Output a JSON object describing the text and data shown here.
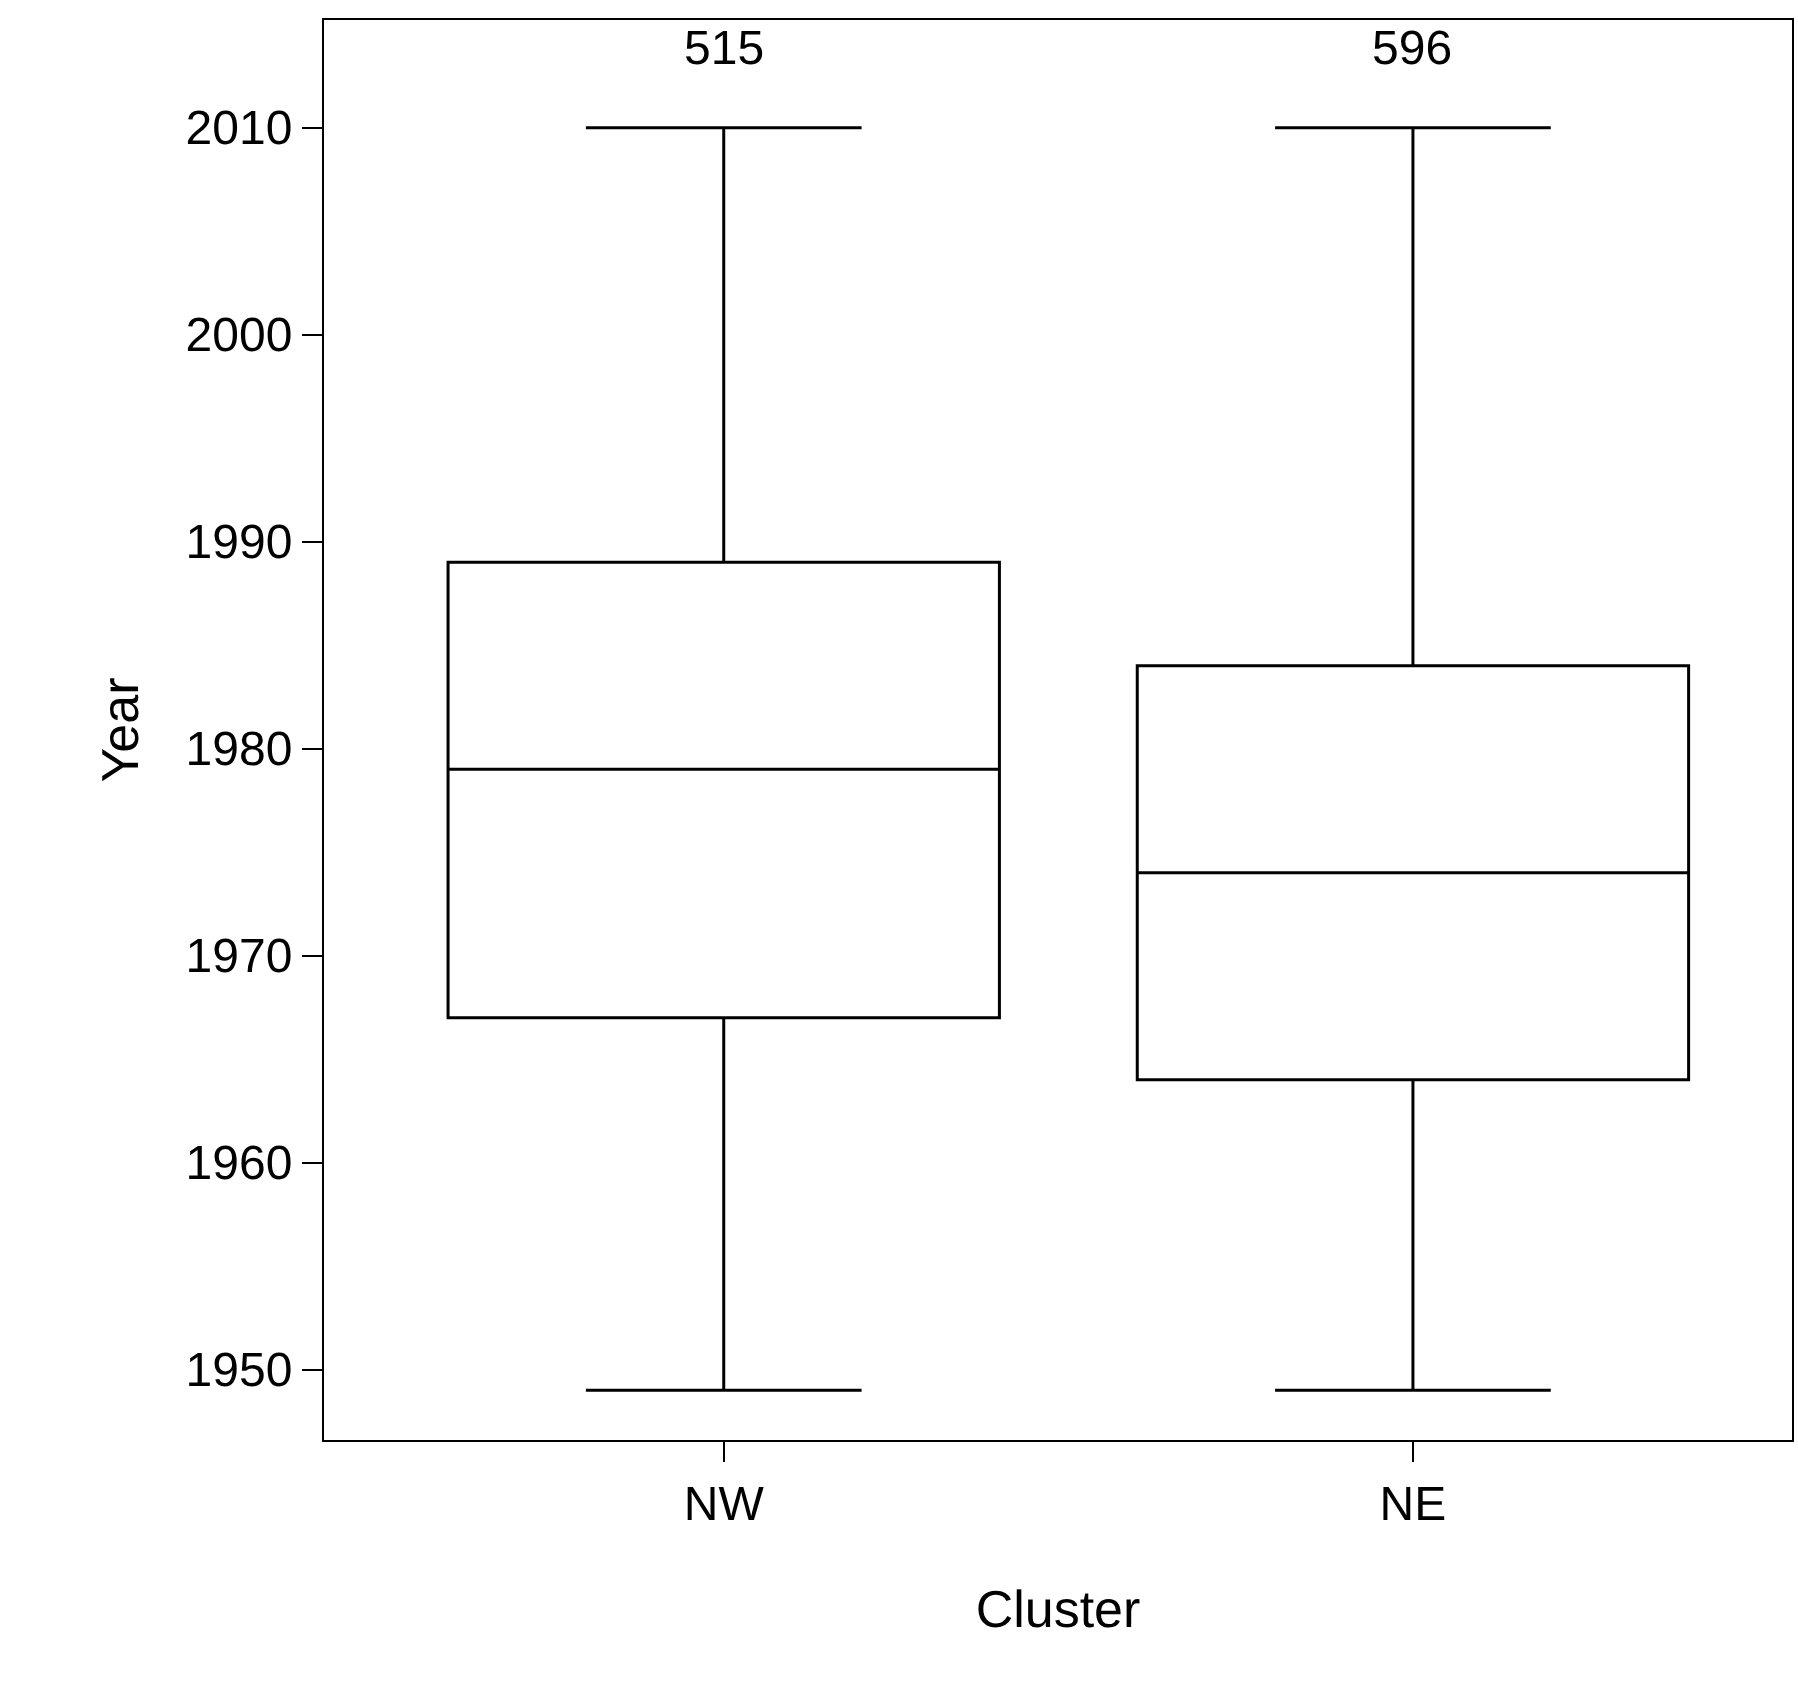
{
  "chart_data": {
    "type": "box",
    "xlabel": "Cluster",
    "ylabel": "Year",
    "categories": [
      "NW",
      "NE"
    ],
    "boxes": [
      {
        "low": 1949,
        "q1": 1967,
        "median": 1979,
        "q3": 1989,
        "high": 2010
      },
      {
        "low": 1949,
        "q1": 1964,
        "median": 1974,
        "q3": 1984,
        "high": 2010
      }
    ],
    "color": "#000000",
    "annotations": [
      "515",
      "596"
    ],
    "ylim": [
      1946.6,
      2015.2
    ],
    "yticks": [
      1950,
      1960,
      1970,
      1980,
      1990,
      2000,
      2010
    ],
    "grid": false
  }
}
